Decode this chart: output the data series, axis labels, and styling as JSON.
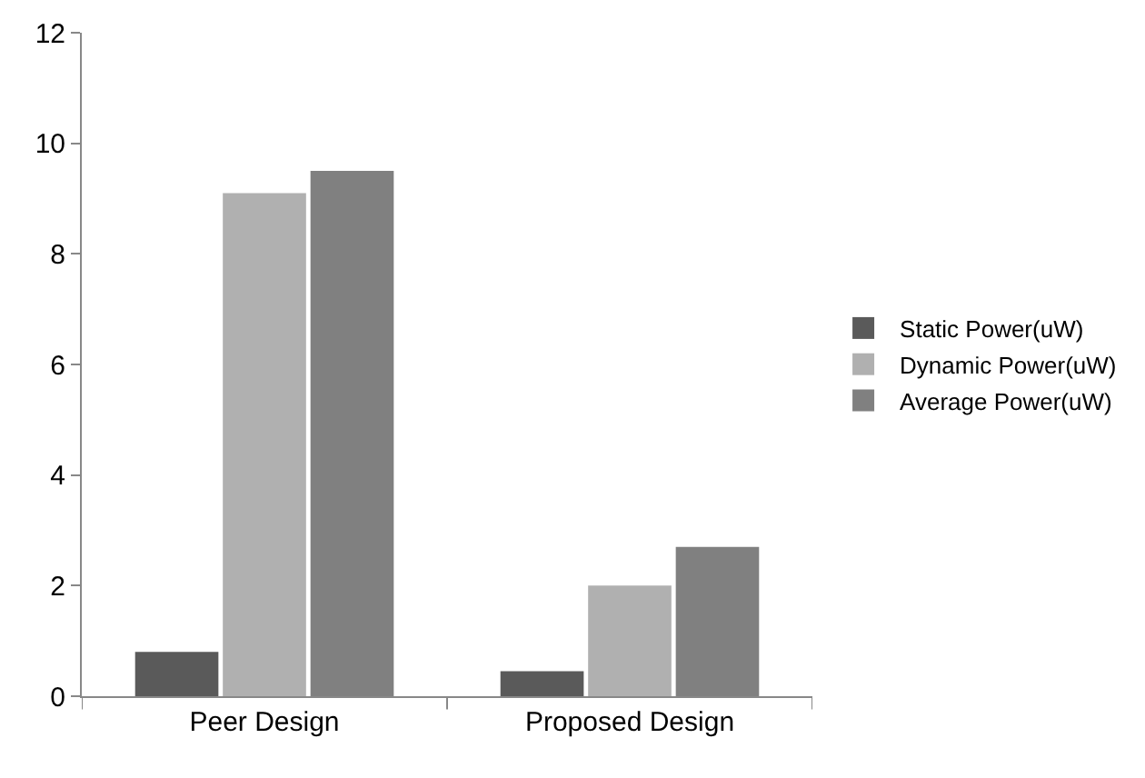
{
  "chart_data": {
    "type": "bar",
    "categories": [
      "Peer Design",
      "Proposed Design"
    ],
    "series": [
      {
        "name": "Static Power(uW)",
        "color": "#5a5a5a",
        "values": [
          0.8,
          0.45
        ]
      },
      {
        "name": "Dynamic Power(uW)",
        "color": "#b0b0b0",
        "values": [
          9.1,
          2.0
        ]
      },
      {
        "name": "Average Power(uW)",
        "color": "#808080",
        "values": [
          9.5,
          2.7
        ]
      }
    ],
    "ylim": [
      0,
      12
    ],
    "yticks": [
      0,
      2,
      4,
      6,
      8,
      10,
      12
    ],
    "legend": "right"
  }
}
